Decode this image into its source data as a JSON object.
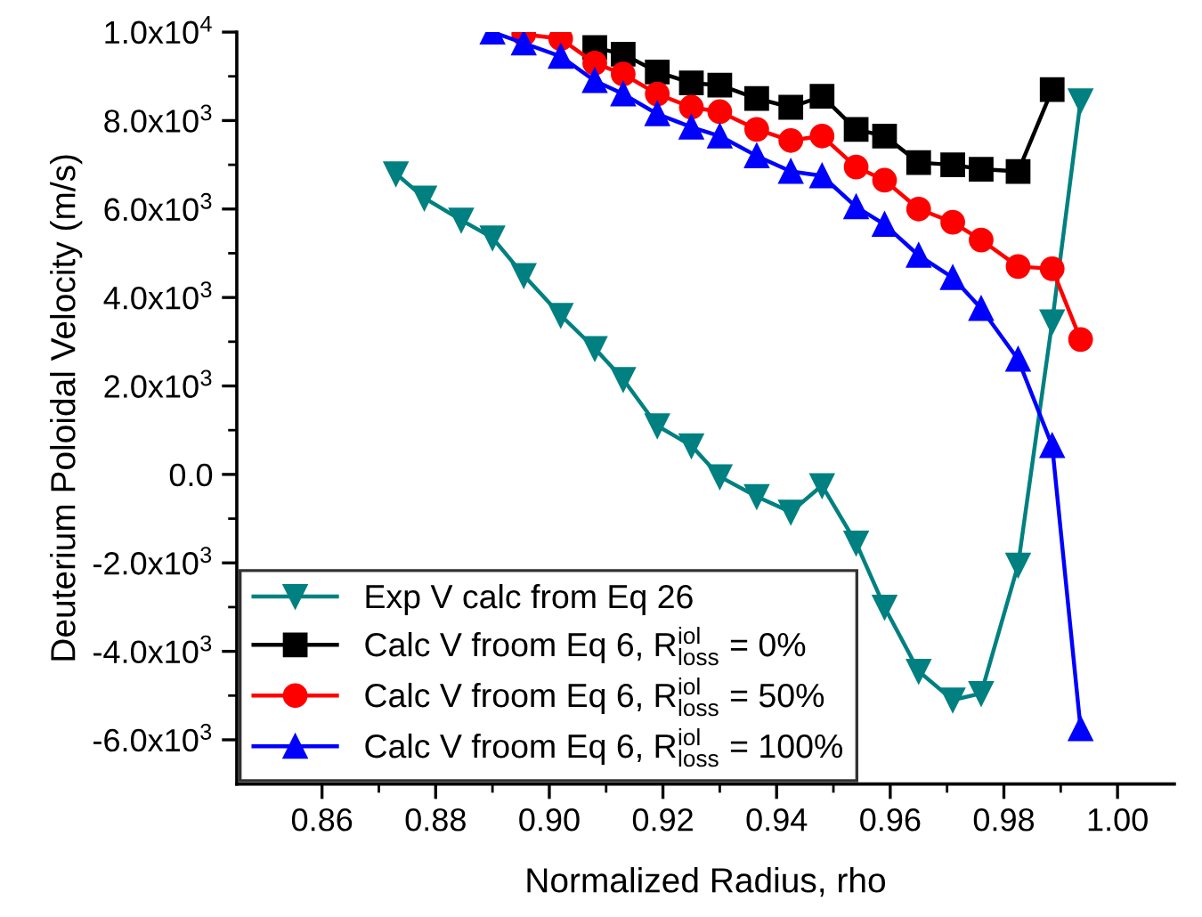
{
  "chart_data": {
    "type": "line",
    "xlabel": "Normalized Radius, rho",
    "ylabel": "Deuterium Poloidal Velocity (m/s)",
    "xlim": [
      0.845,
      1.01
    ],
    "ylim": [
      -7000,
      10000
    ],
    "xticks": [
      0.86,
      0.88,
      {
        "value": 0.9,
        "label": "0.90"
      },
      0.92,
      0.94,
      0.96,
      0.98,
      {
        "value": 1.0,
        "label": "1.00"
      }
    ],
    "yticks": [
      {
        "value": -6000,
        "label": "-6.0x10$^{3}$"
      },
      {
        "value": -4000,
        "label": "-4.0x10$^{3}$"
      },
      {
        "value": -2000,
        "label": "-2.0x10$^{3}$"
      },
      {
        "value": 0,
        "label": "0.0"
      },
      {
        "value": 2000,
        "label": "2.0x10$^{3}$"
      },
      {
        "value": 4000,
        "label": "4.0x10$^{3}$"
      },
      {
        "value": 6000,
        "label": "6.0x10$^{3}$"
      },
      {
        "value": 8000,
        "label": "8.0x10$^{3}$"
      },
      {
        "value": 10000,
        "label": "1.0x10$^{4}$"
      }
    ],
    "grid": false,
    "legend": "bottom left",
    "line_style": "solid",
    "series": [
      {
        "name": "Exp V calc from Eq 26",
        "color": "#008080",
        "marker": "triangle_down",
        "x": [
          0.873,
          0.878,
          0.8845,
          0.89,
          0.8955,
          0.902,
          0.908,
          0.913,
          0.919,
          0.925,
          0.93,
          0.9365,
          0.9425,
          0.948,
          0.954,
          0.959,
          0.965,
          0.971,
          0.976,
          0.9825,
          0.9885,
          0.9935
        ],
        "values": [
          6800,
          6250,
          5750,
          5350,
          4500,
          3600,
          2850,
          2150,
          1100,
          650,
          -50,
          -500,
          -850,
          -250,
          -1550,
          -3000,
          -4450,
          -5100,
          -4950,
          -2050,
          3450,
          8450
        ]
      },
      {
        "name": "Calc V froom Eq 6, R$^{iol}$$_{loss}$ = 0%",
        "color": "#000000",
        "marker": "square",
        "x": [
          0.908,
          0.913,
          0.919,
          0.925,
          0.93,
          0.9365,
          0.9425,
          0.948,
          0.954,
          0.959,
          0.965,
          0.971,
          0.976,
          0.9825,
          0.9885
        ],
        "values": [
          9650,
          9500,
          9100,
          8850,
          8800,
          8500,
          8300,
          8550,
          7800,
          7650,
          7050,
          7000,
          6900,
          6850,
          8700
        ]
      },
      {
        "name": "Calc V froom Eq 6, R$^{iol}$$_{loss}$ = 50%",
        "color": "#ff0000",
        "marker": "circle",
        "x": [
          0.8955,
          0.902,
          0.908,
          0.913,
          0.919,
          0.925,
          0.93,
          0.9365,
          0.9425,
          0.948,
          0.954,
          0.959,
          0.965,
          0.971,
          0.976,
          0.9825,
          0.9885,
          0.9935
        ],
        "values": [
          9950,
          9850,
          9300,
          9050,
          8600,
          8300,
          8200,
          7800,
          7550,
          7650,
          6950,
          6650,
          6000,
          5700,
          5300,
          4700,
          4650,
          3050
        ]
      },
      {
        "name": "Calc V froom Eq 6, R$^{iol}$$_{loss}$ = 100%",
        "color": "#0000ff",
        "marker": "triangle",
        "x": [
          0.89,
          0.8955,
          0.902,
          0.908,
          0.913,
          0.919,
          0.925,
          0.93,
          0.9365,
          0.9425,
          0.948,
          0.954,
          0.959,
          0.965,
          0.971,
          0.976,
          0.9825,
          0.9885,
          0.9935
        ],
        "values": [
          10000,
          9750,
          9450,
          8900,
          8600,
          8150,
          7850,
          7650,
          7200,
          6850,
          6750,
          6050,
          5650,
          4950,
          4450,
          3750,
          2600,
          650,
          -5750
        ]
      }
    ]
  }
}
